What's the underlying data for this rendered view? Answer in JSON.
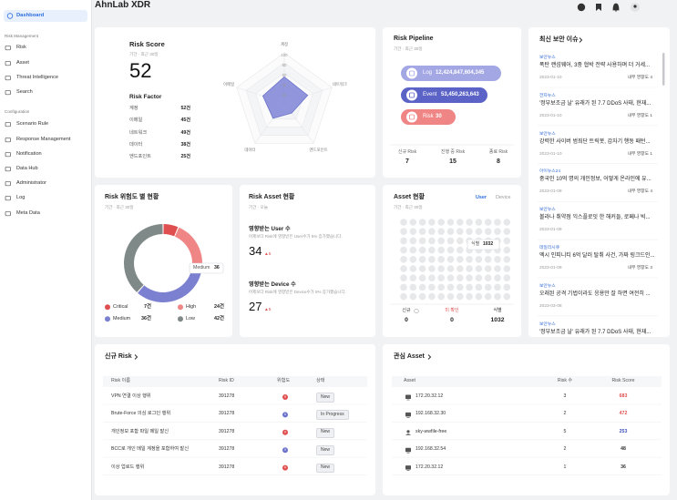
{
  "sidebar": {
    "active": "Dashboard",
    "sections": [
      {
        "title": "Risk Management",
        "items": [
          "Risk",
          "Asset",
          "Threat Intelligence",
          "Search"
        ]
      },
      {
        "title": "Configuration",
        "items": [
          "Scenario Rule",
          "Response Management",
          "Notification",
          "Data Hub",
          "Administrator",
          "Log",
          "Meta Data"
        ]
      }
    ]
  },
  "header": {
    "title": "AhnLab XDR"
  },
  "risk_score": {
    "title": "Risk Score",
    "period": "기간 · 최근 30일",
    "score": 52,
    "factor_title": "Risk Factor",
    "factors": [
      {
        "name": "계정",
        "value": 52,
        "label": "52건"
      },
      {
        "name": "이메일",
        "value": 45,
        "label": "45건"
      },
      {
        "name": "네트워크",
        "value": 49,
        "label": "49건"
      },
      {
        "name": "데이터",
        "value": 38,
        "label": "38건"
      },
      {
        "name": "엔드포인트",
        "value": 25,
        "label": "25건"
      }
    ],
    "radar_lim": [
      0,
      100
    ],
    "radar_ticks": [
      20,
      40,
      60,
      80,
      100
    ]
  },
  "risk_pipeline": {
    "title": "Risk Pipeline",
    "period": "기간 · 최근 30일",
    "stages": [
      {
        "name": "Log",
        "count": "12,424,847,604,345",
        "color": "#a3a7e4"
      },
      {
        "name": "Event",
        "count": "53,450,263,643",
        "color": "#5b63c6"
      },
      {
        "name": "Risk",
        "count": "30",
        "color": "#f08585"
      }
    ],
    "summary": [
      {
        "label": "신규 Risk",
        "value": 7
      },
      {
        "label": "진행 중 Risk",
        "value": 15
      },
      {
        "label": "종료 Risk",
        "value": 8
      }
    ]
  },
  "news": {
    "title": "최신 보안 이슈",
    "items": [
      {
        "source": "보안뉴스",
        "headline": "폭탄 랜섬웨어, 3중 협박 전략 사용하며 더 거세...",
        "date": "2023-01-10",
        "impact": "내부 영향도 4"
      },
      {
        "source": "전자뉴스",
        "headline": "'정부보조금 날' 유래가 된 7.7 DDoS 사태, 현재...",
        "date": "2023-01-10",
        "impact": "내부 영향도 1"
      },
      {
        "source": "보안뉴스",
        "headline": "강력한 사이버 범죄단 트릭봇, 갑자기 행동 패턴...",
        "date": "2023-01-10",
        "impact": "내부 영향도 1"
      },
      {
        "source": "아이뉴스24",
        "headline": "중국인 10억 명의 개인정보, 어떻게 온라인에 유...",
        "date": "2023-01-09",
        "impact": "내부 영향도 4"
      },
      {
        "source": "보안뉴스",
        "headline": "볼라나 취약점 익스플로잇 한 해커들, 로페나 빅...",
        "date": "2023-01-09"
      },
      {
        "source": "데일리시큐",
        "headline": "엑시 인피니티 6억 달러 탈취 사건, 가짜 링크드인...",
        "date": "2023-01-09",
        "impact": "내부 영향도 3"
      },
      {
        "source": "보안뉴스",
        "headline": "오래된 공격 기법이라도 응용만 잘 하면 여전히 ...",
        "date": "2023-03-08"
      },
      {
        "source": "보안뉴스",
        "headline": "'정부보조금 날' 유래가 된 7.7 DDoS 사태, 현재..."
      }
    ]
  },
  "risk_severity": {
    "title": "Risk 위험도 별 현황",
    "period": "기간 · 최근 30일",
    "items": [
      {
        "name": "Critical",
        "value": 7,
        "label": "7건",
        "color": "#e04f4f"
      },
      {
        "name": "High",
        "value": 24,
        "label": "24건",
        "color": "#f08585"
      },
      {
        "name": "Medium",
        "value": 36,
        "label": "36건",
        "color": "#7b80d0"
      },
      {
        "name": "Low",
        "value": 42,
        "label": "42건",
        "color": "#7f8988"
      }
    ]
  },
  "risk_asset": {
    "title": "Risk Asset 현황",
    "period": "기간 · 오늘",
    "blocks": [
      {
        "title": "영향받는 User 수",
        "desc": "어제보다 Risk에 영향받은 User수가 5% 증가했습니다.",
        "value": 34,
        "delta": "▲5"
      },
      {
        "title": "영향받는 Device 수",
        "desc": "어제보다 Risk에 영향받은 Device수가 5% 증가했습니다.",
        "value": 27,
        "delta": "▲5"
      }
    ]
  },
  "asset_status": {
    "title": "Asset 현황",
    "period": "기간 · 최근 30일",
    "tabs": [
      "User",
      "Device"
    ],
    "active_tab": "User",
    "summary": [
      {
        "label": "신규",
        "value": 0,
        "color": "#333333"
      },
      {
        "label": "미 확인",
        "value": 0,
        "color": "#e04f4f"
      },
      {
        "label": "식별",
        "value": 1032,
        "color": "#333333"
      }
    ]
  },
  "new_risk": {
    "title": "신규 Risk",
    "columns": [
      "Risk 이름",
      "Risk ID",
      "위험도",
      "상태"
    ],
    "rows": [
      {
        "name": "VPN 연결 이상 행위",
        "id": 391278,
        "severity": "critical",
        "status": "New"
      },
      {
        "name": "Brute-Force 의심 로그인 행위",
        "id": 391278,
        "severity": "medium",
        "status": "In Progress"
      },
      {
        "name": "개인정보 포함 파일 메일 발신",
        "id": 391278,
        "severity": "critical",
        "status": "New"
      },
      {
        "name": "BCC로 개인 메일 계정을 포함하여 발신",
        "id": 391278,
        "severity": "medium",
        "status": "New"
      },
      {
        "name": "이상 업로드 행위",
        "id": 391278,
        "severity": "critical",
        "status": "New"
      }
    ]
  },
  "key_assets": {
    "title": "관심 Asset",
    "columns": [
      "Asset",
      "Risk 수",
      "Risk Score"
    ],
    "rows": [
      {
        "asset": "172.20.32.12",
        "kind": "device",
        "count": 3,
        "score": 683,
        "score_color": "#e04f4f"
      },
      {
        "asset": "192.168.32.30",
        "kind": "device",
        "count": 2,
        "score": 472,
        "score_color": "#e04f4f"
      },
      {
        "asset": "sky-wwfile-free",
        "kind": "user",
        "count": 5,
        "score": 253,
        "score_color": "#3e4fc0"
      },
      {
        "asset": "192.168.32.54",
        "kind": "device",
        "count": 2,
        "score": 48,
        "score_color": "#333333"
      },
      {
        "asset": "172.20.32.12",
        "kind": "device",
        "count": 1,
        "score": 36,
        "score_color": "#333333"
      }
    ]
  }
}
